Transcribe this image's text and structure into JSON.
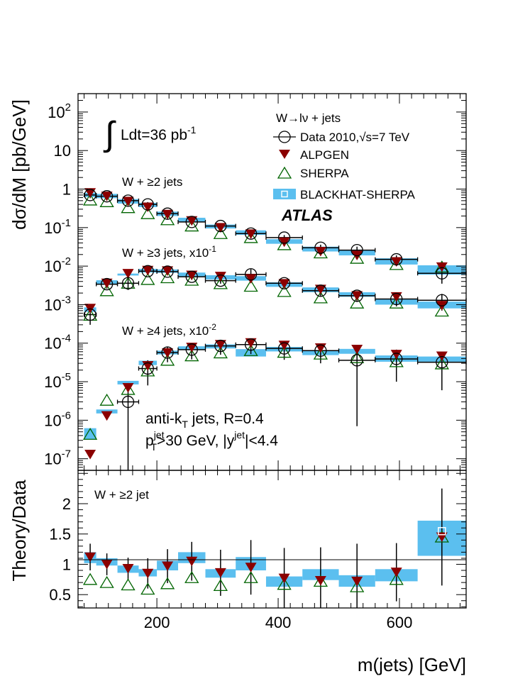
{
  "chart_data": {
    "type": "scatter",
    "xlabel": "m(jets) [GeV]",
    "colors": {
      "data": "#000000",
      "alpgen": "#8b0000",
      "sherpa": "#006400",
      "blackhat": "#5bbfef"
    },
    "x_ticks": [
      200,
      400,
      600
    ],
    "xlim": [
      70,
      710
    ],
    "top_panel": {
      "ylabel": "dσ/dM [pb/GeV]",
      "ylim": [
        5e-08,
        300
      ],
      "y_scale": "log",
      "y_tick_labels": [
        {
          "base": "10",
          "exp": "2",
          "value": 100
        },
        {
          "base": "10",
          "exp": "",
          "value": 10
        },
        {
          "base": "1",
          "exp": "",
          "value": 1
        },
        {
          "base": "10",
          "exp": "-1",
          "value": 0.1
        },
        {
          "base": "10",
          "exp": "-2",
          "value": 0.01
        },
        {
          "base": "10",
          "exp": "-3",
          "value": 0.001
        },
        {
          "base": "10",
          "exp": "-4",
          "value": 0.0001
        },
        {
          "base": "10",
          "exp": "-5",
          "value": 1e-05
        },
        {
          "base": "10",
          "exp": "-6",
          "value": 1e-06
        },
        {
          "base": "10",
          "exp": "-7",
          "value": 1e-07
        }
      ],
      "lumi": {
        "text": "Ldt=36 pb",
        "exp": "-1"
      },
      "legend": {
        "title": "W→lν + jets",
        "data": "Data 2010,",
        "data_sqrt": "s=7 TeV",
        "alpgen": "ALPGEN",
        "sherpa": "SHERPA",
        "blackhat": "BLACKHAT-SHERPA",
        "atlas": "ATLAS"
      },
      "jet_info_1": {
        "pre": "anti-k",
        "sub": "T",
        "post": " jets, R=0.4"
      },
      "jet_info_2": {
        "p": "p",
        "psup": "jet",
        "psub": "T",
        "mid": ">30 GeV, |y",
        "ysup": "jet",
        "post": "|<4.4"
      },
      "groups": [
        {
          "label": "W + ≥2 jets",
          "bins": [
            [
              80,
              100
            ],
            [
              100,
              135
            ],
            [
              135,
              170
            ],
            [
              170,
              200
            ],
            [
              200,
              235
            ],
            [
              235,
              280
            ],
            [
              280,
              330
            ],
            [
              330,
              380
            ],
            [
              380,
              440
            ],
            [
              440,
              500
            ],
            [
              500,
              560
            ],
            [
              560,
              630
            ],
            [
              630,
              710
            ]
          ],
          "data": [
            0.7,
            0.65,
            0.5,
            0.4,
            0.23,
            0.14,
            0.11,
            0.07,
            0.055,
            0.03,
            0.026,
            0.015,
            0.0065
          ],
          "data_err": [
            0.12,
            0.09,
            0.07,
            0.06,
            0.035,
            0.02,
            0.017,
            0.011,
            0.009,
            0.006,
            0.006,
            0.004,
            0.003
          ],
          "alpgen": [
            0.8,
            0.65,
            0.48,
            0.34,
            0.22,
            0.15,
            0.1,
            0.068,
            0.042,
            0.024,
            0.019,
            0.013,
            0.0095
          ],
          "sherpa": [
            0.52,
            0.47,
            0.33,
            0.23,
            0.16,
            0.11,
            0.07,
            0.055,
            0.036,
            0.022,
            0.016,
            0.011,
            0.0095
          ],
          "blackhat": [
            [
              0.62,
              0.8
            ],
            [
              0.58,
              0.75
            ],
            [
              0.42,
              0.55
            ],
            [
              0.34,
              0.44
            ],
            [
              0.2,
              0.26
            ],
            [
              0.14,
              0.18
            ],
            [
              0.095,
              0.12
            ],
            [
              0.065,
              0.085
            ],
            [
              0.038,
              0.05
            ],
            [
              0.024,
              0.032
            ],
            [
              0.019,
              0.026
            ],
            [
              0.011,
              0.016
            ],
            [
              0.006,
              0.0105
            ]
          ]
        },
        {
          "label": "W + ≥3 jets, x10",
          "label_exp": "-1",
          "bins": [
            [
              80,
              100
            ],
            [
              100,
              135
            ],
            [
              135,
              170
            ],
            [
              170,
              200
            ],
            [
              200,
              235
            ],
            [
              235,
              280
            ],
            [
              280,
              330
            ],
            [
              330,
              380
            ],
            [
              380,
              440
            ],
            [
              440,
              500
            ],
            [
              500,
              560
            ],
            [
              560,
              630
            ],
            [
              630,
              710
            ]
          ],
          "data": [
            0.00055,
            0.0034,
            0.0036,
            0.0074,
            0.0072,
            0.0053,
            0.0042,
            0.0061,
            0.0036,
            0.0023,
            0.0017,
            0.0014,
            0.0013
          ],
          "data_err": [
            0.00025,
            0.0008,
            0.0012,
            0.0011,
            0.0011,
            0.0009,
            0.0007,
            0.0022,
            0.0008,
            0.0006,
            0.0005,
            0.0005,
            0.0006
          ],
          "alpgen": [
            0.0008,
            0.0036,
            0.0064,
            0.0077,
            0.0075,
            0.0058,
            0.0054,
            0.0047,
            0.0035,
            0.0025,
            0.0017,
            0.0016,
            0.00095
          ],
          "sherpa": [
            0.00053,
            0.0023,
            0.0036,
            0.0045,
            0.005,
            0.0043,
            0.0035,
            0.003,
            0.0022,
            0.0015,
            0.0011,
            0.0011,
            0.00068
          ],
          "blackhat": [
            [
              0.00065,
              0.00085
            ],
            [
              0.0033,
              0.0043
            ],
            [
              0.0057,
              0.0064
            ],
            [
              0.0068,
              0.0085
            ],
            [
              0.0067,
              0.0082
            ],
            [
              0.0053,
              0.0068
            ],
            [
              0.0045,
              0.0058
            ],
            [
              0.0042,
              0.0055
            ],
            [
              0.0029,
              0.0038
            ],
            [
              0.0021,
              0.0028
            ],
            [
              0.0016,
              0.0021
            ],
            [
              0.001,
              0.0014
            ],
            [
              0.0008,
              0.0012
            ]
          ]
        },
        {
          "label": "W + ≥4 jets, x10",
          "label_exp": "-2",
          "bins": [
            [
              80,
              100
            ],
            [
              100,
              135
            ],
            [
              135,
              170
            ],
            [
              170,
              200
            ],
            [
              200,
              235
            ],
            [
              235,
              280
            ],
            [
              280,
              330
            ],
            [
              330,
              380
            ],
            [
              380,
              440
            ],
            [
              440,
              500
            ],
            [
              500,
              560
            ],
            [
              560,
              630
            ],
            [
              630,
              710
            ]
          ],
          "data": [
            null,
            null,
            3e-06,
            2.2e-05,
            5.7e-05,
            6.8e-05,
            8.5e-05,
            9.2e-05,
            7.3e-05,
            6.4e-05,
            3.6e-05,
            3.9e-05,
            3.2e-05
          ],
          "data_err": [
            null,
            null,
            2.95e-06,
            1.4e-05,
            2.5e-05,
            3e-05,
            3.5e-05,
            4e-05,
            3.6e-05,
            3.4e-05,
            3.53e-05,
            2.9e-05,
            2.6e-05
          ],
          "alpgen": [
            1.3e-07,
            1.3e-06,
            7e-06,
            2.6e-05,
            5.6e-05,
            7.8e-05,
            9.2e-05,
            0.000102,
            8.8e-05,
            7.5e-05,
            6.9e-05,
            5.1e-05,
            4.6e-05
          ],
          "sherpa": [
            4.3e-07,
            3.3e-06,
            6.3e-06,
            1.9e-05,
            3.6e-05,
            4.7e-05,
            5.6e-05,
            6.4e-05,
            5.8e-05,
            5.2e-05,
            4.2e-05,
            3.3e-05,
            2.9e-05
          ],
          "blackhat": [
            [
              3.2e-07,
              6.2e-07
            ],
            [
              1.5e-06,
              1.9e-06
            ],
            [
              8.5e-06,
              1.05e-05
            ],
            [
              2.7e-05,
              3.5e-05
            ],
            [
              5.1e-05,
              6.4e-05
            ],
            [
              6.6e-05,
              8.3e-05
            ],
            [
              7.3e-05,
              9.3e-05
            ],
            [
              4.5e-05,
              7e-05
            ],
            [
              6.1e-05,
              8e-05
            ],
            [
              4.9e-05,
              6.4e-05
            ],
            [
              5.3e-05,
              7.1e-05
            ],
            [
              3.3e-05,
              4.8e-05
            ],
            [
              3.3e-05,
              4.5e-05
            ]
          ]
        }
      ]
    },
    "ratio_panel": {
      "ylabel": "Theory/Data",
      "label": "W + ≥2 jet",
      "ylim": [
        0.28,
        2.55
      ],
      "y_ticks": [
        0.5,
        1,
        1.5,
        2
      ],
      "y_tick_labels": [
        "0.5",
        "1",
        "1.5",
        "2"
      ],
      "bins": [
        [
          80,
          100
        ],
        [
          100,
          135
        ],
        [
          135,
          170
        ],
        [
          170,
          200
        ],
        [
          200,
          235
        ],
        [
          235,
          280
        ],
        [
          280,
          330
        ],
        [
          330,
          380
        ],
        [
          380,
          440
        ],
        [
          440,
          500
        ],
        [
          500,
          560
        ],
        [
          560,
          630
        ],
        [
          630,
          710
        ]
      ],
      "alpgen": [
        1.12,
        1.0,
        0.93,
        0.85,
        0.97,
        1.05,
        0.86,
        0.95,
        0.77,
        0.73,
        0.72,
        0.87,
        1.45
      ],
      "data_err": [
        0.22,
        0.18,
        0.18,
        0.25,
        0.28,
        0.32,
        0.38,
        0.45,
        0.5,
        0.55,
        0.62,
        0.48,
        0.8
      ],
      "sherpa": [
        0.75,
        0.7,
        0.66,
        0.59,
        0.68,
        0.78,
        0.65,
        0.78,
        0.67,
        0.72,
        0.63,
        0.75,
        1.45
      ],
      "blackhat": [
        [
          1.02,
          1.2
        ],
        [
          0.98,
          1.1
        ],
        [
          0.86,
          0.98
        ],
        [
          0.8,
          0.92
        ],
        [
          0.9,
          1.06
        ],
        [
          1.02,
          1.2
        ],
        [
          0.78,
          0.92
        ],
        [
          0.9,
          1.12
        ],
        [
          0.63,
          0.8
        ],
        [
          0.74,
          0.92
        ],
        [
          0.63,
          0.82
        ],
        [
          0.72,
          0.92
        ],
        [
          1.14,
          1.72
        ]
      ]
    }
  }
}
